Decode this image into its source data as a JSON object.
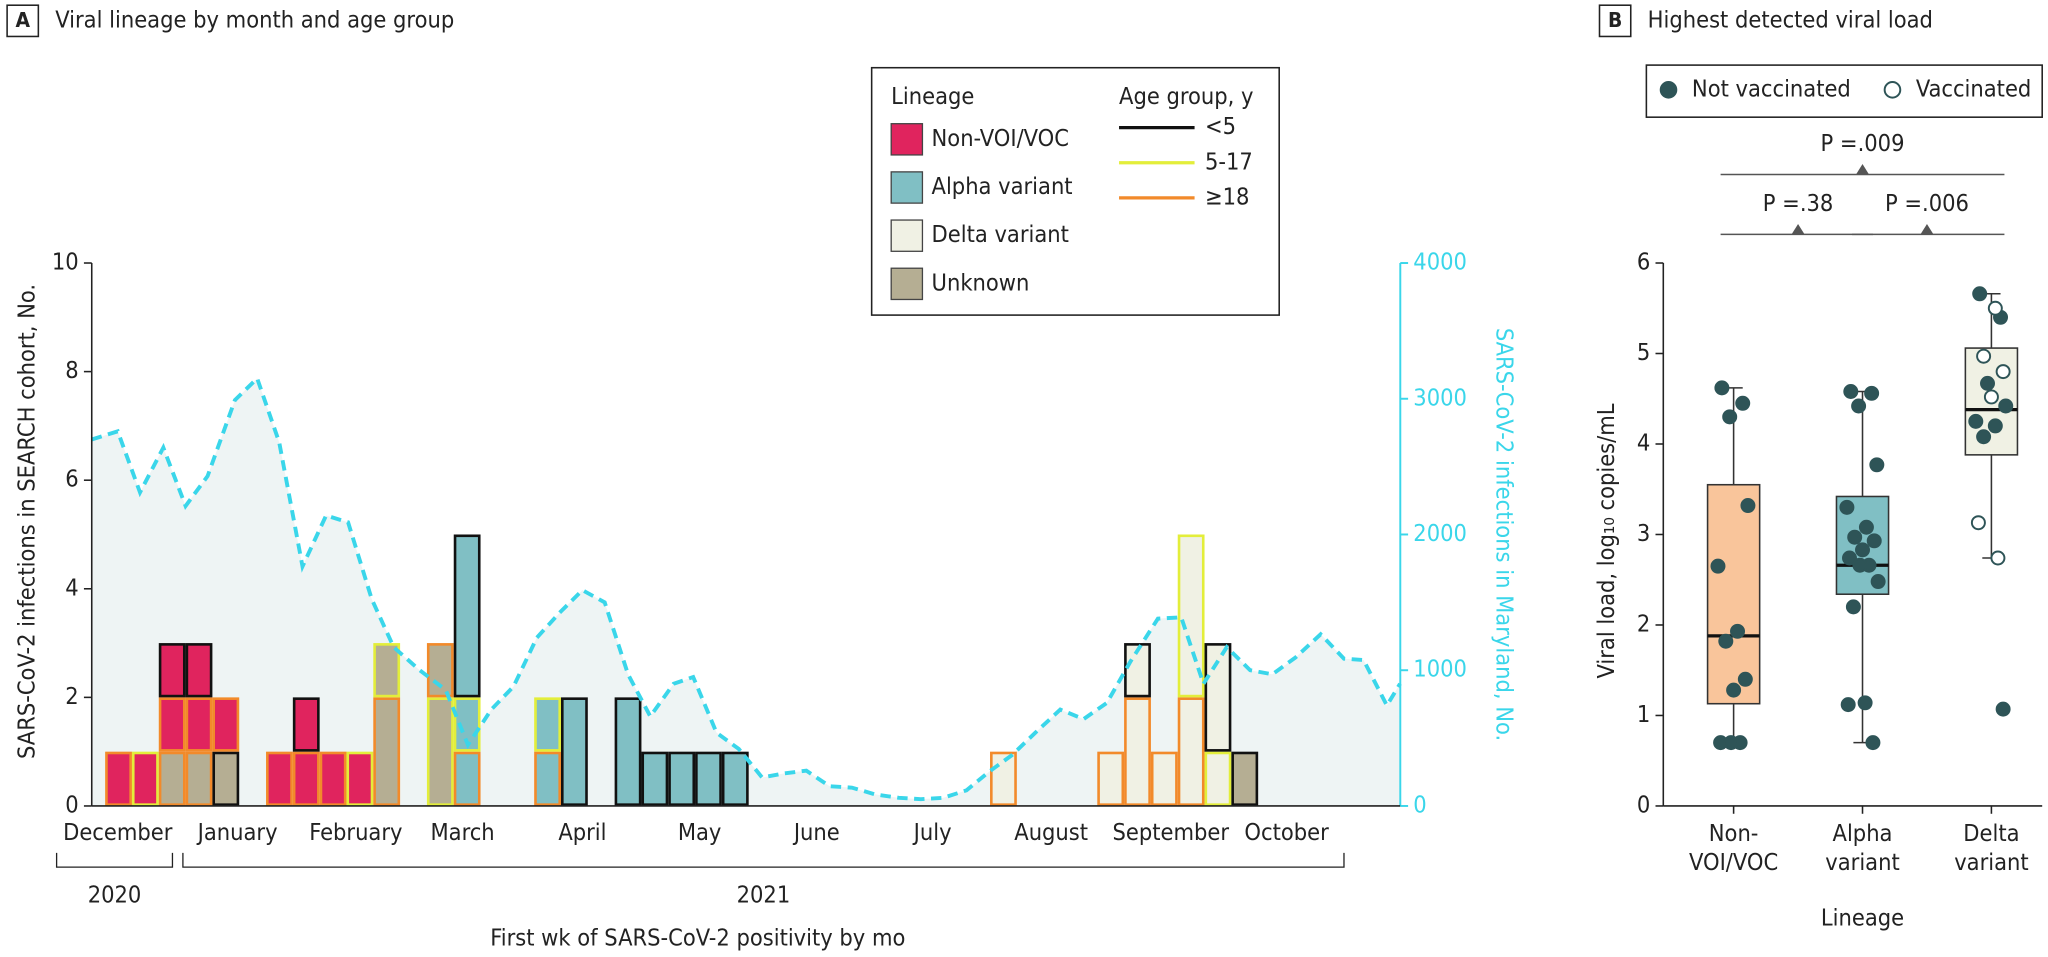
{
  "chart_data": [
    {
      "type": "stacked_bar",
      "panel": "A",
      "title": "Viral lineage by month and age group",
      "xlabel": "First wk of SARS-CoV-2 positivity by mo",
      "ylabel": "SARS-CoV-2 infections in SEARCH cohort, No.",
      "y2label": "SARS-CoV-2 infections in Maryland, No.",
      "xlim": [
        0,
        48.8
      ],
      "xticks": [
        {
          "value": 0.97,
          "label": "December"
        },
        {
          "value": 5.44,
          "label": "January"
        },
        {
          "value": 9.85,
          "label": "February"
        },
        {
          "value": 13.83,
          "label": "March"
        },
        {
          "value": 18.3,
          "label": "April"
        },
        {
          "value": 22.67,
          "label": "May"
        },
        {
          "value": 27.04,
          "label": "June"
        },
        {
          "value": 31.36,
          "label": "July"
        },
        {
          "value": 35.78,
          "label": "August"
        },
        {
          "value": 40.24,
          "label": "September"
        },
        {
          "value": 44.56,
          "label": "October"
        }
      ],
      "years": [
        {
          "label": "2020",
          "from": -1.31,
          "to": 3.01
        },
        {
          "label": "2021",
          "from": 3.4,
          "to": 46.7
        }
      ],
      "ylim": [
        0,
        10
      ],
      "yticks": [
        0,
        2,
        4,
        6,
        8,
        10
      ],
      "y2lim": [
        0,
        4000
      ],
      "y2ticks": [
        0,
        1000,
        2000,
        3000,
        4000
      ],
      "legend_lineage_title": "Lineage",
      "legend_age_title": "Age group, y",
      "lineages": [
        {
          "name": "Non-VOI/VOC",
          "color": "#e0245e"
        },
        {
          "name": "Alpha variant",
          "color": "#80bfc4"
        },
        {
          "name": "Delta variant",
          "color": "#f0f1e4"
        },
        {
          "name": "Unknown",
          "color": "#b5ae93"
        }
      ],
      "age_groups": [
        {
          "name": "<5",
          "color": "#111111"
        },
        {
          "name": "5-17",
          "color": "#e3ee3a"
        },
        {
          "name": "≥18",
          "color": "#f28a2a"
        }
      ],
      "bars": [
        {
          "x": 1,
          "segments": [
            {
              "lineage": "Non-VOI/VOC",
              "age": "≥18",
              "value": 1
            }
          ]
        },
        {
          "x": 2,
          "segments": [
            {
              "lineage": "Non-VOI/VOC",
              "age": "5-17",
              "value": 1
            }
          ]
        },
        {
          "x": 3,
          "segments": [
            {
              "lineage": "Unknown",
              "age": "≥18",
              "value": 1
            },
            {
              "lineage": "Non-VOI/VOC",
              "age": "≥18",
              "value": 1
            },
            {
              "lineage": "Non-VOI/VOC",
              "age": "<5",
              "value": 1
            }
          ]
        },
        {
          "x": 4,
          "segments": [
            {
              "lineage": "Unknown",
              "age": "≥18",
              "value": 1
            },
            {
              "lineage": "Non-VOI/VOC",
              "age": "≥18",
              "value": 1
            },
            {
              "lineage": "Non-VOI/VOC",
              "age": "<5",
              "value": 1
            }
          ]
        },
        {
          "x": 5,
          "segments": [
            {
              "lineage": "Unknown",
              "age": "<5",
              "value": 1
            },
            {
              "lineage": "Non-VOI/VOC",
              "age": "≥18",
              "value": 1
            }
          ]
        },
        {
          "x": 7,
          "segments": [
            {
              "lineage": "Non-VOI/VOC",
              "age": "≥18",
              "value": 1
            }
          ]
        },
        {
          "x": 8,
          "segments": [
            {
              "lineage": "Non-VOI/VOC",
              "age": "≥18",
              "value": 1
            },
            {
              "lineage": "Non-VOI/VOC",
              "age": "<5",
              "value": 1
            }
          ]
        },
        {
          "x": 9,
          "segments": [
            {
              "lineage": "Non-VOI/VOC",
              "age": "≥18",
              "value": 1
            }
          ]
        },
        {
          "x": 10,
          "segments": [
            {
              "lineage": "Non-VOI/VOC",
              "age": "5-17",
              "value": 1
            }
          ]
        },
        {
          "x": 11,
          "segments": [
            {
              "lineage": "Unknown",
              "age": "≥18",
              "value": 2
            },
            {
              "lineage": "Unknown",
              "age": "5-17",
              "value": 1
            }
          ]
        },
        {
          "x": 13,
          "segments": [
            {
              "lineage": "Unknown",
              "age": "5-17",
              "value": 2
            },
            {
              "lineage": "Unknown",
              "age": "≥18",
              "value": 1
            }
          ]
        },
        {
          "x": 14,
          "segments": [
            {
              "lineage": "Alpha variant",
              "age": "≥18",
              "value": 1
            },
            {
              "lineage": "Alpha variant",
              "age": "5-17",
              "value": 1
            },
            {
              "lineage": "Alpha variant",
              "age": "<5",
              "value": 3
            }
          ]
        },
        {
          "x": 17,
          "segments": [
            {
              "lineage": "Alpha variant",
              "age": "≥18",
              "value": 1
            },
            {
              "lineage": "Alpha variant",
              "age": "5-17",
              "value": 1
            }
          ]
        },
        {
          "x": 18,
          "segments": [
            {
              "lineage": "Alpha variant",
              "age": "<5",
              "value": 2
            }
          ]
        },
        {
          "x": 20,
          "segments": [
            {
              "lineage": "Alpha variant",
              "age": "<5",
              "value": 2
            }
          ]
        },
        {
          "x": 21,
          "segments": [
            {
              "lineage": "Alpha variant",
              "age": "<5",
              "value": 1
            }
          ]
        },
        {
          "x": 22,
          "segments": [
            {
              "lineage": "Alpha variant",
              "age": "<5",
              "value": 1
            }
          ]
        },
        {
          "x": 23,
          "segments": [
            {
              "lineage": "Alpha variant",
              "age": "<5",
              "value": 1
            }
          ]
        },
        {
          "x": 24,
          "segments": [
            {
              "lineage": "Alpha variant",
              "age": "<5",
              "value": 1
            }
          ]
        },
        {
          "x": 34,
          "segments": [
            {
              "lineage": "Delta variant",
              "age": "≥18",
              "value": 1
            }
          ]
        },
        {
          "x": 38,
          "segments": [
            {
              "lineage": "Delta variant",
              "age": "≥18",
              "value": 1
            }
          ]
        },
        {
          "x": 39,
          "segments": [
            {
              "lineage": "Delta variant",
              "age": "≥18",
              "value": 2
            },
            {
              "lineage": "Delta variant",
              "age": "<5",
              "value": 1
            }
          ]
        },
        {
          "x": 40,
          "segments": [
            {
              "lineage": "Delta variant",
              "age": "≥18",
              "value": 1
            }
          ]
        },
        {
          "x": 41,
          "segments": [
            {
              "lineage": "Delta variant",
              "age": "≥18",
              "value": 2
            },
            {
              "lineage": "Delta variant",
              "age": "5-17",
              "value": 3
            }
          ]
        },
        {
          "x": 42,
          "segments": [
            {
              "lineage": "Delta variant",
              "age": "5-17",
              "value": 1
            },
            {
              "lineage": "Delta variant",
              "age": "<5",
              "value": 2
            }
          ]
        },
        {
          "x": 43,
          "segments": [
            {
              "lineage": "Unknown",
              "age": "<5",
              "value": 1
            }
          ]
        }
      ],
      "maryland": {
        "axis": "y2",
        "color": "#3ad6ea",
        "area_color": "#eef4f4",
        "x": [
          0,
          0.97,
          1.8,
          2.67,
          3.5,
          4.32,
          5.34,
          6.17,
          6.99,
          7.86,
          8.74,
          9.56,
          10.44,
          11.26,
          12.23,
          13.2,
          14.03,
          14.9,
          15.73,
          16.6,
          17.48,
          18.3,
          19.13,
          20,
          20.83,
          21.7,
          22.43,
          23.3,
          24.13,
          25,
          25.83,
          26.65,
          27.52,
          28.35,
          29.22,
          30.1,
          30.92,
          31.75,
          32.62,
          33.45,
          34.32,
          35.19,
          36.12,
          36.99,
          37.86,
          38.74,
          39.76,
          40.63,
          41.46,
          42.33,
          43.2,
          44.03,
          44.9,
          45.83,
          46.7,
          47.43,
          48.3,
          48.79
        ],
        "values": [
          2700,
          2760,
          2310,
          2640,
          2210,
          2430,
          2990,
          3150,
          2680,
          1765,
          2140,
          2090,
          1525,
          1170,
          1000,
          855,
          450,
          710,
          880,
          1240,
          1430,
          1590,
          1500,
          970,
          660,
          900,
          950,
          540,
          420,
          210,
          240,
          260,
          145,
          135,
          85,
          60,
          50,
          60,
          115,
          250,
          375,
          540,
          710,
          640,
          760,
          1065,
          1380,
          1390,
          900,
          1170,
          1000,
          970,
          1095,
          1265,
          1085,
          1075,
          740,
          900
        ]
      }
    },
    {
      "type": "box",
      "panel": "B",
      "title": "Highest detected viral load",
      "xlabel": "Lineage",
      "ylabel": "Viral load, log₁₀ copies/mL",
      "categories": [
        [
          "Non-",
          "VOI/VOC"
        ],
        [
          "Alpha",
          "variant"
        ],
        [
          "Delta",
          "variant"
        ]
      ],
      "ylim": [
        0,
        6
      ],
      "yticks": [
        0,
        1,
        2,
        3,
        4,
        5,
        6
      ],
      "box_colors": [
        "#f9c59b",
        "#80bfc4",
        "#f0f1e4"
      ],
      "boxes": [
        {
          "whisker_low": 0.7,
          "q1": 1.13,
          "median": 1.88,
          "q3": 3.55,
          "whisker_high": 4.62
        },
        {
          "whisker_low": 0.7,
          "q1": 2.34,
          "median": 2.66,
          "q3": 3.42,
          "whisker_high": 4.58
        },
        {
          "whisker_low": 2.74,
          "q1": 3.88,
          "median": 4.38,
          "q3": 5.06,
          "whisker_high": 5.66
        }
      ],
      "series": [
        {
          "name": "Not vaccinated",
          "color": "#2e5457",
          "filled": true,
          "values": [
            [
              4.62,
              4.45,
              4.3,
              3.32,
              2.65,
              1.93,
              1.82,
              1.4,
              1.28,
              0.7,
              0.7,
              0.7
            ],
            [
              4.58,
              4.56,
              4.42,
              3.77,
              3.3,
              3.08,
              2.97,
              2.93,
              2.83,
              2.74,
              2.66,
              2.66,
              2.48,
              2.2,
              1.14,
              1.12,
              0.7
            ],
            [
              5.66,
              5.4,
              4.67,
              4.42,
              4.25,
              4.2,
              4.08,
              1.07
            ]
          ]
        },
        {
          "name": "Vaccinated",
          "color": "#2e5457",
          "filled": false,
          "values": [
            [],
            [],
            [
              5.5,
              4.97,
              4.8,
              4.52,
              3.13,
              2.74
            ]
          ]
        }
      ],
      "comparisons": [
        {
          "label": "P =.009",
          "from": 0,
          "to": 2
        },
        {
          "label": "P =.38",
          "from": 0,
          "to": 1
        },
        {
          "label": "P =.006",
          "from": 1,
          "to": 2
        }
      ]
    }
  ]
}
